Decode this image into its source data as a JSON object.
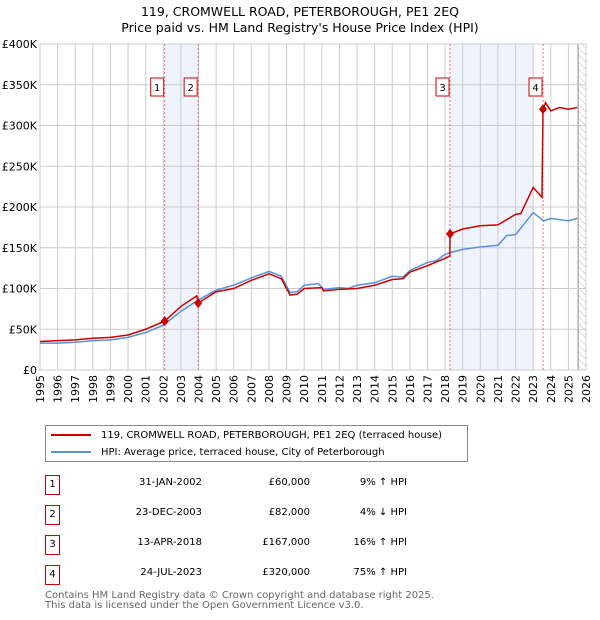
{
  "chart_data": {
    "type": "line",
    "title": "119, CROMWELL ROAD, PETERBOROUGH, PE1 2EQ",
    "subtitle": "Price paid vs. HM Land Registry's House Price Index (HPI)",
    "xlim": [
      1995,
      2026
    ],
    "ylim": [
      0,
      400000
    ],
    "yticks": [
      {
        "v": 0,
        "label": "£0"
      },
      {
        "v": 50000,
        "label": "£50K"
      },
      {
        "v": 100000,
        "label": "£100K"
      },
      {
        "v": 150000,
        "label": "£150K"
      },
      {
        "v": 200000,
        "label": "£200K"
      },
      {
        "v": 250000,
        "label": "£250K"
      },
      {
        "v": 300000,
        "label": "£300K"
      },
      {
        "v": 350000,
        "label": "£350K"
      },
      {
        "v": 400000,
        "label": "£400K"
      }
    ],
    "xticks": [
      "1995",
      "1996",
      "1997",
      "1998",
      "1999",
      "2000",
      "2001",
      "2002",
      "2003",
      "2004",
      "2005",
      "2006",
      "2007",
      "2008",
      "2009",
      "2010",
      "2011",
      "2012",
      "2013",
      "2014",
      "2015",
      "2016",
      "2017",
      "2018",
      "2019",
      "2020",
      "2021",
      "2022",
      "2023",
      "2024",
      "2025",
      "2026"
    ],
    "series": [
      {
        "name": "119, CROMWELL ROAD, PETERBOROUGH, PE1 2EQ (terraced house)",
        "color": "#cc0000",
        "x": [
          1995,
          1996,
          1997,
          1998,
          1999,
          2000,
          2001,
          2002.08,
          2003,
          2003.9,
          2003.98,
          2005,
          2006,
          2007,
          2008,
          2008.7,
          2009.2,
          2009.6,
          2010,
          2011,
          2011.1,
          2012,
          2013,
          2014,
          2015,
          2015.6,
          2016,
          2017,
          2018,
          2018.27,
          2018.28,
          2019,
          2020,
          2021,
          2022,
          2022.3,
          2023,
          2023.5,
          2023.56,
          2023.7,
          2024,
          2024.5,
          2025,
          2025.5
        ],
        "y": [
          35000,
          36000,
          37000,
          39000,
          40000,
          43000,
          50000,
          60000,
          78000,
          91000,
          82000,
          96000,
          100000,
          110000,
          118000,
          112000,
          92000,
          93000,
          100000,
          101000,
          97000,
          99000,
          100000,
          104000,
          111000,
          112000,
          120000,
          128000,
          137000,
          140000,
          167000,
          173000,
          177000,
          178000,
          191000,
          192000,
          224000,
          212000,
          320000,
          328000,
          318000,
          322000,
          320000,
          322000
        ]
      },
      {
        "name": "HPI: Average price, terraced house, City of Peterborough",
        "color": "#5b8fd6",
        "x": [
          1995,
          1996,
          1997,
          1998,
          1999,
          2000,
          2001,
          2002,
          2003,
          2004,
          2005,
          2006,
          2007,
          2008,
          2008.7,
          2009.2,
          2009.6,
          2010,
          2010.8,
          2011.1,
          2012,
          2012.5,
          2013,
          2014,
          2015,
          2015.6,
          2016,
          2017,
          2017.5,
          2018,
          2018.3,
          2019,
          2020,
          2021,
          2021.5,
          2022,
          2023,
          2023.6,
          2024,
          2025,
          2025.5
        ],
        "y": [
          33000,
          33000,
          34000,
          36000,
          37000,
          40000,
          46000,
          55000,
          72000,
          86000,
          98000,
          104000,
          113000,
          121000,
          115000,
          95000,
          96000,
          104000,
          106000,
          99000,
          101000,
          100000,
          104000,
          107000,
          115000,
          114000,
          122000,
          132000,
          134000,
          142000,
          144000,
          148000,
          151000,
          153000,
          165000,
          166000,
          193000,
          183000,
          186000,
          183000,
          186000
        ]
      }
    ],
    "sales": [
      {
        "n": "1",
        "x": 2002.08,
        "y": 60000,
        "date": "31-JAN-2002",
        "price": "£60,000",
        "hpi": "9% ↑ HPI"
      },
      {
        "n": "2",
        "x": 2003.98,
        "y": 82000,
        "date": "23-DEC-2003",
        "price": "£82,000",
        "hpi": "4% ↓ HPI"
      },
      {
        "n": "3",
        "x": 2018.28,
        "y": 167000,
        "date": "13-APR-2018",
        "price": "£167,000",
        "hpi": "16% ↑ HPI"
      },
      {
        "n": "4",
        "x": 2023.56,
        "y": 320000,
        "date": "24-JUL-2023",
        "price": "£320,000",
        "hpi": "75% ↑ HPI"
      }
    ]
  },
  "footer": {
    "line1": "Contains HM Land Registry data © Crown copyright and database right 2025.",
    "line2": "This data is licensed under the Open Government Licence v3.0."
  }
}
